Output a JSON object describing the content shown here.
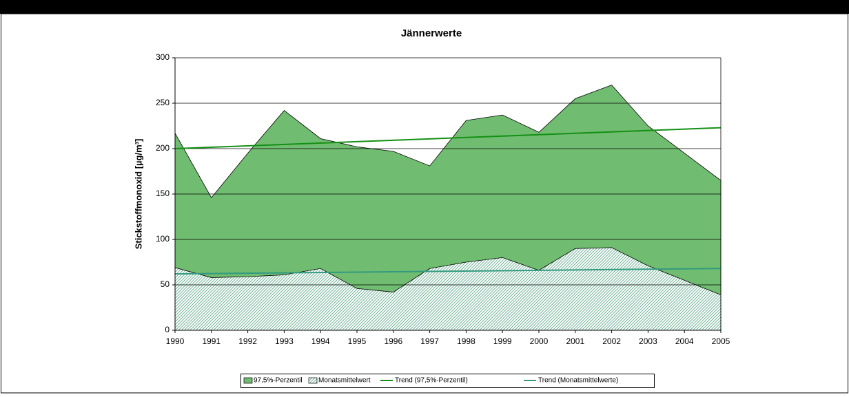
{
  "chart_data": {
    "type": "area",
    "title": "Jännerwerte",
    "y_label": "Stickstoffmonoxid [µg/m³]",
    "x": [
      1990,
      1991,
      1992,
      1993,
      1994,
      1995,
      1996,
      1997,
      1998,
      1999,
      2000,
      2001,
      2002,
      2003,
      2004,
      2005
    ],
    "xlim": [
      1990,
      2005
    ],
    "xticks": [
      1990,
      1991,
      1992,
      1993,
      1994,
      1995,
      1996,
      1997,
      1998,
      1999,
      2000,
      2001,
      2002,
      2003,
      2004,
      2005
    ],
    "ylim": [
      0,
      300
    ],
    "yticks": [
      0,
      50,
      100,
      150,
      200,
      250,
      300
    ],
    "grid": true,
    "legend": "bottom",
    "series": [
      {
        "name": "97,5%-Perzentil",
        "type": "area",
        "color": "#70bc70",
        "values": [
          217,
          146,
          195,
          242,
          211,
          202,
          197,
          181,
          231,
          237,
          218,
          255,
          270,
          225,
          195,
          165
        ]
      },
      {
        "name": "Monatsmittelwert",
        "type": "area",
        "hatch": true,
        "color": "#4aa07a",
        "values": [
          69,
          58,
          59,
          61,
          68,
          46,
          42,
          68,
          75,
          80,
          66,
          90,
          91,
          71,
          55,
          39
        ]
      },
      {
        "name": "Trend (97,5%-Perzentil)",
        "type": "line",
        "color": "#139013",
        "x": [
          1990,
          2005
        ],
        "values": [
          200,
          223
        ]
      },
      {
        "name": "Trend (Monatsmittelwerte)",
        "type": "line",
        "color": "#339a80",
        "x": [
          1990,
          2005
        ],
        "values": [
          62,
          68
        ]
      }
    ]
  }
}
